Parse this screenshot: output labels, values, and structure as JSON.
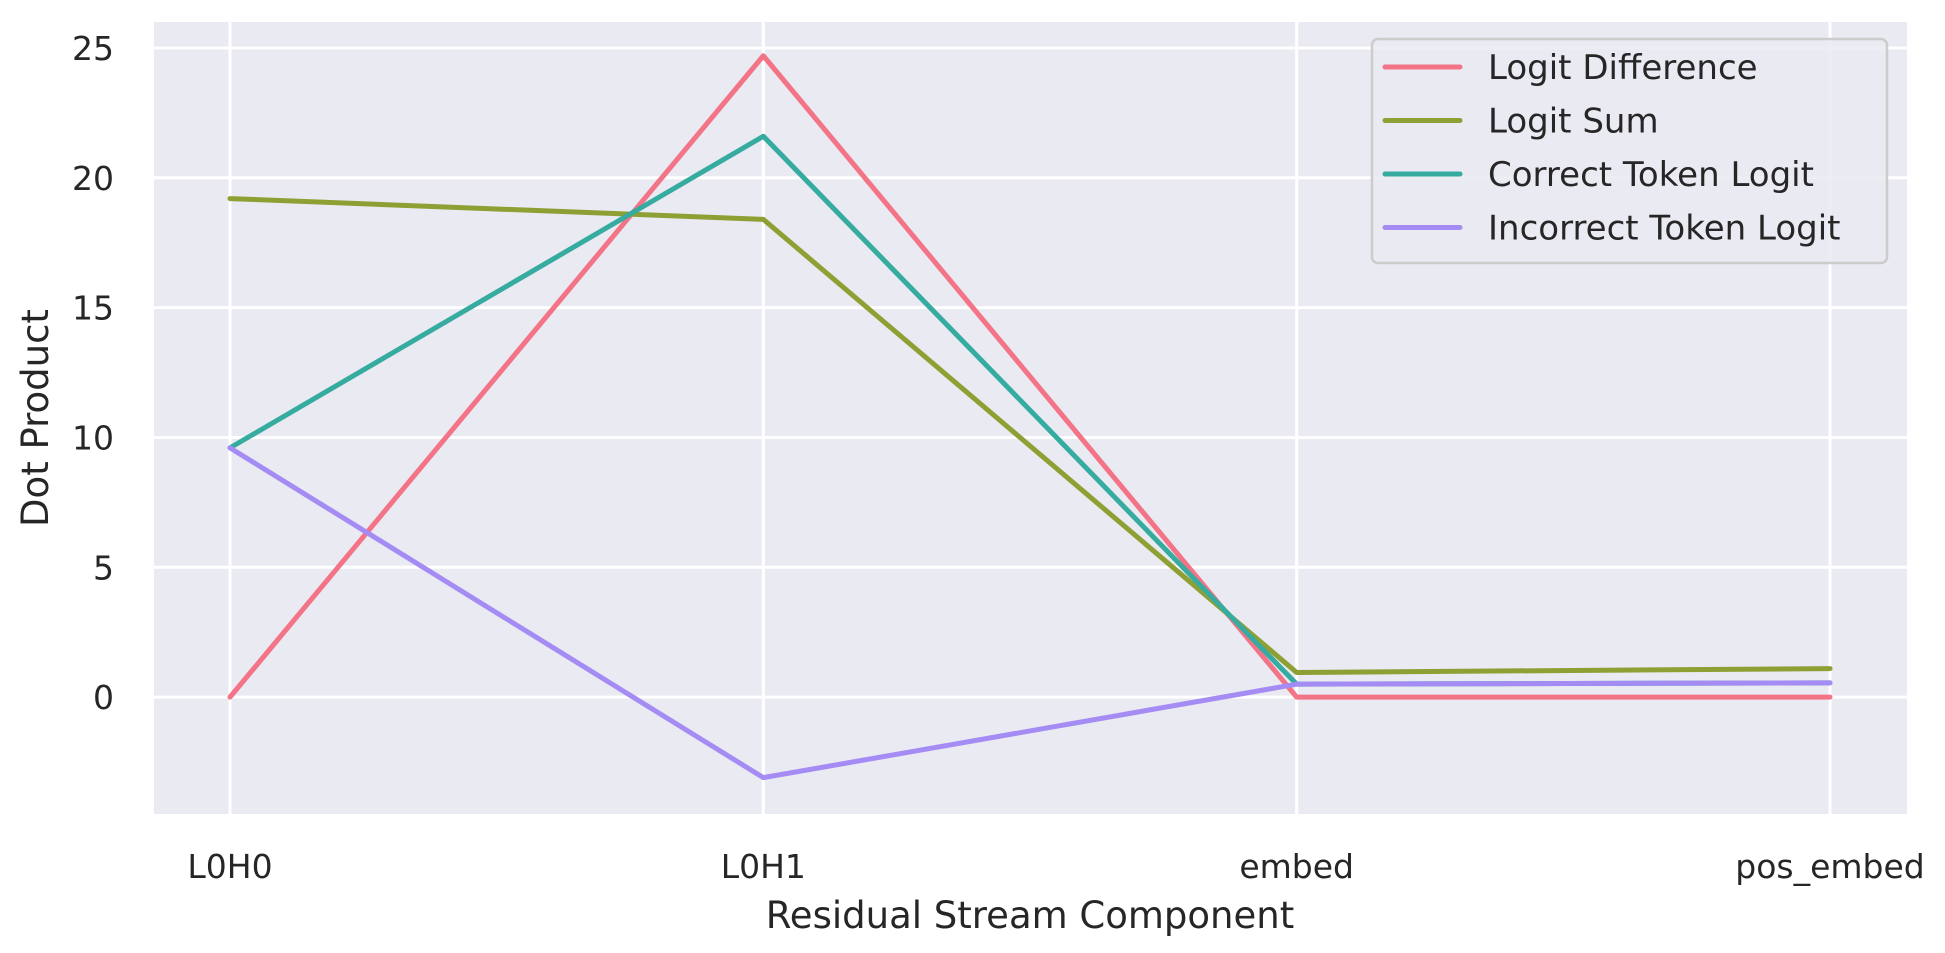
{
  "chart_data": {
    "type": "line",
    "title": "",
    "xlabel": "Residual Stream Component",
    "ylabel": "Dot Product",
    "categories": [
      "L0H0",
      "L0H1",
      "embed",
      "pos_embed"
    ],
    "ylim": [
      -4.5,
      26
    ],
    "yticks": [
      0,
      5,
      10,
      15,
      20,
      25
    ],
    "grid": true,
    "legend_position": "top-right",
    "series": [
      {
        "name": "Logit Difference",
        "color": "#f37387",
        "values": [
          0.0,
          24.7,
          0.0,
          0.0
        ]
      },
      {
        "name": "Logit Sum",
        "color": "#8e9f33",
        "values": [
          19.2,
          18.4,
          0.95,
          1.1
        ]
      },
      {
        "name": "Correct Token Logit",
        "color": "#36aba0",
        "values": [
          9.6,
          21.6,
          0.5,
          0.55
        ]
      },
      {
        "name": "Incorrect Token Logit",
        "color": "#a48cf4",
        "values": [
          9.6,
          -3.1,
          0.5,
          0.55
        ]
      }
    ]
  }
}
